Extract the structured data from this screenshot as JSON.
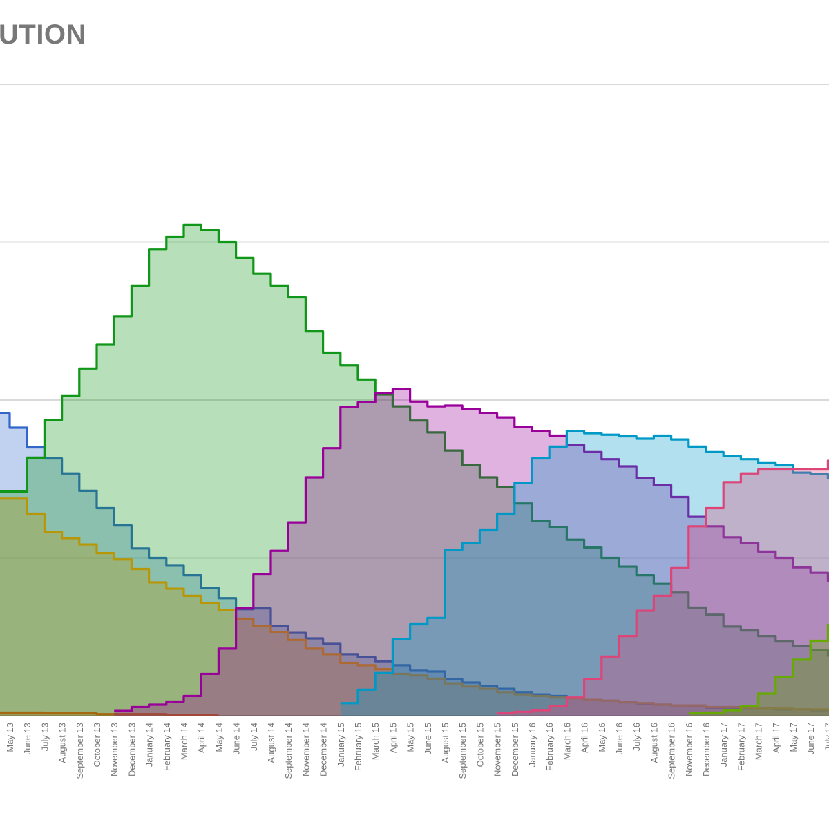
{
  "page": {
    "background": "#ffffff"
  },
  "title": {
    "visible_text": "UTION",
    "color": "#787878"
  },
  "chart_data": {
    "type": "stepped-area",
    "stacked": false,
    "grid": "on",
    "legend_position": "none",
    "title": "UTION",
    "xlabel": "",
    "ylabel": "",
    "unit": "percent",
    "ylim": [
      0,
      100
    ],
    "ytick_step": 20,
    "visible_gridlines": [
      20,
      40,
      60,
      80
    ],
    "area_opacity": 0.3,
    "stroke_width": 3.2,
    "axis": {
      "label_color": "#757575",
      "gridline_color": "#d9d9d9",
      "baseline_color": "#9a9a9a"
    },
    "categories": [
      "May 13",
      "June 13",
      "July 13",
      "August 13",
      "September 13",
      "October 13",
      "November 13",
      "December 13",
      "January 14",
      "February 14",
      "March 14",
      "April 14",
      "May 14",
      "June 14",
      "July 14",
      "August 14",
      "September 14",
      "November 14",
      "December 14",
      "January 15",
      "February 15",
      "March 15",
      "April 15",
      "May 15",
      "June 15",
      "August 15",
      "September 15",
      "October 15",
      "November 15",
      "December 15",
      "January 16",
      "February 16",
      "March 16",
      "April 16",
      "May 16",
      "June 16",
      "July 16",
      "August 16",
      "September 16",
      "November 16",
      "December 16",
      "January 17",
      "February 17",
      "March 17",
      "April 17",
      "May 17",
      "June 17",
      "July 17"
    ],
    "series": [
      {
        "name": "series-blue",
        "color": "#3366cc",
        "edge_value": 38.3,
        "values": [
          36.5,
          34.0,
          32.6,
          30.7,
          28.5,
          26.3,
          24.1,
          21.2,
          20.0,
          19.0,
          17.8,
          16.2,
          14.9,
          13.5,
          13.6,
          11.4,
          10.5,
          9.8,
          9.1,
          7.8,
          7.4,
          6.9,
          6.4,
          5.7,
          5.6,
          4.6,
          4.2,
          3.8,
          3.4,
          3.0,
          2.7,
          2.5,
          2.2,
          2.0,
          1.9,
          1.7,
          1.5,
          1.4,
          1.3,
          1.2,
          1.0,
          1.0,
          0.9,
          0.9,
          0.8,
          0.8,
          0.7,
          0.7
        ]
      },
      {
        "name": "series-red",
        "color": "#dc3912",
        "edge_value": 0.4,
        "values": [
          0.4,
          0.4,
          0.3,
          0.3,
          0.3,
          0.2,
          0.2,
          0.2,
          0.2,
          0.1,
          0.1,
          0.1,
          null,
          null,
          null,
          null,
          null,
          null,
          null,
          null,
          null,
          null,
          null,
          null,
          null,
          null,
          null,
          null,
          null,
          null,
          null,
          null,
          null,
          null,
          null,
          null,
          null,
          null,
          null,
          null,
          null,
          null,
          null,
          null,
          null,
          null,
          null,
          null
        ]
      },
      {
        "name": "series-orange",
        "color": "#ff9900",
        "edge_value": 27.5,
        "values": [
          27.5,
          25.6,
          23.3,
          22.5,
          21.7,
          20.6,
          19.8,
          18.6,
          16.9,
          16.1,
          15.2,
          14.3,
          13.4,
          12.3,
          11.4,
          10.6,
          9.6,
          8.5,
          7.8,
          6.7,
          6.4,
          5.9,
          5.3,
          5.1,
          4.7,
          4.1,
          3.7,
          3.4,
          3.0,
          2.7,
          2.5,
          2.3,
          2.2,
          2.0,
          1.9,
          1.7,
          1.6,
          1.4,
          1.3,
          1.3,
          1.1,
          1.1,
          1.0,
          0.9,
          0.9,
          0.8,
          0.8,
          0.7
        ]
      },
      {
        "name": "series-green",
        "color": "#109618",
        "edge_value": 28.4,
        "values": [
          28.4,
          32.7,
          37.5,
          40.5,
          44.0,
          47.0,
          50.6,
          54.5,
          59.1,
          60.7,
          62.2,
          61.5,
          60.0,
          58.0,
          56.0,
          54.5,
          53.0,
          48.7,
          46.0,
          44.4,
          42.6,
          40.7,
          39.2,
          37.4,
          35.9,
          33.6,
          31.8,
          30.2,
          29.0,
          26.9,
          24.7,
          23.9,
          22.3,
          21.3,
          20.0,
          18.9,
          17.8,
          16.7,
          15.6,
          13.7,
          12.8,
          11.3,
          10.8,
          10.1,
          9.4,
          8.8,
          8.3,
          7.6
        ]
      },
      {
        "name": "series-purple",
        "color": "#990099",
        "edge_value": null,
        "values": [
          null,
          null,
          null,
          null,
          null,
          null,
          0.6,
          1.1,
          1.4,
          1.8,
          2.5,
          5.3,
          8.5,
          13.6,
          17.9,
          20.9,
          24.5,
          30.2,
          33.9,
          39.1,
          39.7,
          40.9,
          41.4,
          39.8,
          39.2,
          39.3,
          38.9,
          38.3,
          37.8,
          36.6,
          36.1,
          35.5,
          34.3,
          33.4,
          32.5,
          31.6,
          30.1,
          29.2,
          27.7,
          25.2,
          24.0,
          22.6,
          21.9,
          20.8,
          20.0,
          18.8,
          18.1,
          17.1
        ]
      },
      {
        "name": "series-cyan",
        "color": "#0099c6",
        "edge_value": null,
        "values": [
          null,
          null,
          null,
          null,
          null,
          null,
          null,
          null,
          null,
          null,
          null,
          null,
          null,
          null,
          null,
          null,
          null,
          null,
          null,
          1.6,
          3.3,
          5.4,
          9.7,
          11.6,
          12.4,
          21.0,
          21.9,
          23.5,
          25.6,
          29.5,
          32.6,
          34.1,
          36.1,
          35.8,
          35.6,
          35.4,
          35.1,
          35.5,
          35.0,
          34.1,
          33.4,
          32.9,
          32.5,
          32.0,
          31.8,
          30.8,
          30.6,
          30.1
        ]
      },
      {
        "name": "series-pink",
        "color": "#dd4477",
        "edge_value": null,
        "values": [
          null,
          null,
          null,
          null,
          null,
          null,
          null,
          null,
          null,
          null,
          null,
          null,
          null,
          null,
          null,
          null,
          null,
          null,
          null,
          null,
          null,
          null,
          null,
          null,
          null,
          null,
          null,
          null,
          0.3,
          0.5,
          0.7,
          1.2,
          2.3,
          4.6,
          7.5,
          10.1,
          13.3,
          15.2,
          18.7,
          24.0,
          26.3,
          29.6,
          30.7,
          31.2,
          31.2,
          31.2,
          31.2,
          32.3
        ]
      },
      {
        "name": "series-lightgreen",
        "color": "#66aa00",
        "edge_value": null,
        "values": [
          null,
          null,
          null,
          null,
          null,
          null,
          null,
          null,
          null,
          null,
          null,
          null,
          null,
          null,
          null,
          null,
          null,
          null,
          null,
          null,
          null,
          null,
          null,
          null,
          null,
          null,
          null,
          null,
          null,
          null,
          null,
          null,
          null,
          null,
          null,
          null,
          null,
          null,
          null,
          0.3,
          0.4,
          0.7,
          1.2,
          2.8,
          4.9,
          7.1,
          9.5,
          11.5
        ]
      }
    ]
  }
}
